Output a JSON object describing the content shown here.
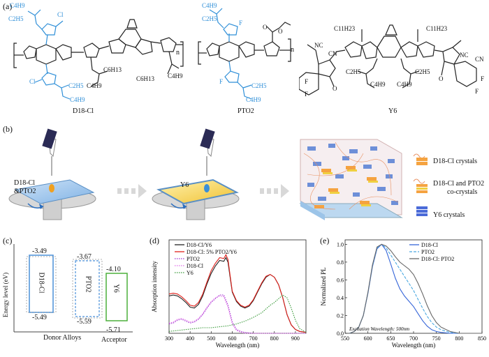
{
  "panel_a": {
    "label": "(a)",
    "molecules": [
      "D18-Cl",
      "PTO2",
      "Y6"
    ],
    "substituents": {
      "d18_cl": [
        "C4H9",
        "C2H5",
        "Cl",
        "C6H13",
        "C4H9",
        "C6H13",
        "C4H9",
        "Cl",
        "C2H5",
        "C4H9"
      ],
      "pto2": [
        "C4H9",
        "C2H5",
        "F",
        "F",
        "C2H5",
        "C4H9"
      ],
      "y6": [
        "C11H23",
        "C11H23",
        "C2H5",
        "C4H9",
        "C2H5",
        "C4H9",
        "NC",
        "CN",
        "NC",
        "CN",
        "F",
        "F",
        "F",
        "F",
        "O",
        "O"
      ]
    }
  },
  "panel_b": {
    "label": "(b)",
    "step1_label": "D18-Cl\n&PTO2",
    "step1_line1": "D18-Cl",
    "step1_line2": "&PTO2",
    "step2_label": "Y6",
    "legend": [
      "D18-Cl crystals",
      "D18-Cl and PTO2 co-crystals",
      "Y6 crystals"
    ],
    "legend_line1": "D18-Cl and PTO2",
    "legend_line2": "co-crystals"
  },
  "panel_c": {
    "label": "(c)",
    "ylabel": "Energy level (eV)",
    "boxes": [
      {
        "name": "D18-Cl",
        "lumo": "-3.49",
        "homo": "-5.49"
      },
      {
        "name": "PTO2",
        "lumo": "-3.67",
        "homo": "-5.59"
      },
      {
        "name": "Y6",
        "lumo": "-4.10",
        "homo": "-5.71"
      }
    ],
    "donor_label": "Donor Alloys",
    "acceptor_label": "Acceptor"
  },
  "chart_data": [
    {
      "type": "line",
      "panel": "(d)",
      "xlabel": "Wavelength (nm)",
      "ylabel": "Absorption intensity",
      "xlim": [
        300,
        950
      ],
      "ylim": [
        0,
        1.0
      ],
      "xticks": [
        300,
        400,
        500,
        600,
        700,
        800,
        900
      ],
      "series": [
        {
          "name": "D18-Cl/Y6",
          "color": "#222222",
          "style": "solid",
          "x": [
            300,
            320,
            340,
            360,
            380,
            400,
            420,
            440,
            460,
            480,
            500,
            520,
            540,
            560,
            570,
            580,
            590,
            600,
            620,
            640,
            660,
            680,
            700,
            720,
            740,
            760,
            780,
            800,
            820,
            840,
            860,
            880,
            900,
            920,
            950
          ],
          "y": [
            0.4,
            0.41,
            0.4,
            0.37,
            0.33,
            0.28,
            0.27,
            0.31,
            0.4,
            0.53,
            0.64,
            0.72,
            0.78,
            0.77,
            0.81,
            0.76,
            0.6,
            0.44,
            0.34,
            0.29,
            0.27,
            0.29,
            0.35,
            0.44,
            0.53,
            0.6,
            0.63,
            0.6,
            0.52,
            0.38,
            0.2,
            0.09,
            0.04,
            0.02,
            0.01
          ]
        },
        {
          "name": "D18-Cl: 5% PTO2/Y6",
          "color": "#e0201a",
          "style": "solid",
          "x": [
            300,
            320,
            340,
            360,
            380,
            400,
            420,
            440,
            460,
            480,
            500,
            520,
            540,
            560,
            570,
            580,
            590,
            600,
            620,
            640,
            660,
            680,
            700,
            720,
            740,
            760,
            780,
            800,
            820,
            840,
            860,
            880,
            900,
            920,
            950
          ],
          "y": [
            0.42,
            0.43,
            0.42,
            0.39,
            0.35,
            0.3,
            0.29,
            0.33,
            0.42,
            0.55,
            0.67,
            0.75,
            0.81,
            0.8,
            0.84,
            0.79,
            0.62,
            0.45,
            0.35,
            0.3,
            0.28,
            0.3,
            0.36,
            0.45,
            0.54,
            0.61,
            0.63,
            0.6,
            0.52,
            0.38,
            0.2,
            0.09,
            0.04,
            0.02,
            0.01
          ]
        },
        {
          "name": "PTO2",
          "color": "#a030d0",
          "style": "dotted",
          "x": [
            300,
            320,
            340,
            360,
            380,
            400,
            420,
            440,
            460,
            480,
            500,
            520,
            540,
            560,
            580,
            600,
            620,
            640,
            660,
            700,
            800,
            950
          ],
          "y": [
            0.1,
            0.11,
            0.14,
            0.15,
            0.13,
            0.11,
            0.12,
            0.15,
            0.2,
            0.27,
            0.33,
            0.37,
            0.41,
            0.41,
            0.3,
            0.12,
            0.04,
            0.02,
            0.01,
            0.0,
            0.0,
            0.0
          ]
        },
        {
          "name": "D18-Cl",
          "color": "#e070e8",
          "style": "dotted",
          "x": [
            300,
            320,
            340,
            360,
            380,
            400,
            420,
            440,
            460,
            480,
            500,
            520,
            540,
            560,
            580,
            600,
            620,
            640,
            660,
            700,
            800,
            950
          ],
          "y": [
            0.11,
            0.12,
            0.15,
            0.16,
            0.14,
            0.12,
            0.13,
            0.16,
            0.21,
            0.28,
            0.34,
            0.38,
            0.4,
            0.39,
            0.28,
            0.1,
            0.03,
            0.01,
            0.0,
            0.0,
            0.0,
            0.0
          ]
        },
        {
          "name": "Y6",
          "color": "#3a9a3a",
          "style": "dotted",
          "x": [
            300,
            340,
            380,
            420,
            460,
            500,
            540,
            580,
            620,
            660,
            700,
            740,
            780,
            800,
            820,
            840,
            860,
            880,
            900,
            920,
            950
          ],
          "y": [
            0.02,
            0.03,
            0.04,
            0.05,
            0.06,
            0.06,
            0.07,
            0.08,
            0.1,
            0.13,
            0.17,
            0.22,
            0.3,
            0.33,
            0.37,
            0.41,
            0.38,
            0.27,
            0.14,
            0.05,
            0.01
          ]
        }
      ]
    },
    {
      "type": "line",
      "panel": "(e)",
      "xlabel": "Wavelength (nm)",
      "ylabel": "Normalized PL",
      "xlim": [
        550,
        850
      ],
      "ylim": [
        0,
        1.05
      ],
      "xticks": [
        550,
        600,
        650,
        700,
        750,
        800,
        850
      ],
      "yticks": [
        0.0,
        0.2,
        0.4,
        0.6,
        0.8,
        1.0
      ],
      "annotation": "Excitation Wavelength: 500nm",
      "series": [
        {
          "name": "D18-Cl",
          "color": "#3565d8",
          "style": "solid",
          "x": [
            560,
            570,
            580,
            590,
            600,
            610,
            620,
            630,
            640,
            650,
            660,
            670,
            680,
            690,
            700,
            710,
            720,
            730,
            740,
            750,
            760,
            780,
            800,
            850
          ],
          "y": [
            0.0,
            0.02,
            0.07,
            0.2,
            0.45,
            0.75,
            0.95,
            1.0,
            0.93,
            0.78,
            0.62,
            0.5,
            0.42,
            0.36,
            0.3,
            0.22,
            0.14,
            0.08,
            0.04,
            0.02,
            0.01,
            0.0,
            0.0,
            0.0
          ]
        },
        {
          "name": "PTO2",
          "color": "#4aa8e0",
          "style": "dashed",
          "x": [
            560,
            570,
            580,
            590,
            600,
            610,
            620,
            630,
            640,
            650,
            660,
            670,
            680,
            690,
            700,
            710,
            720,
            730,
            740,
            750,
            760,
            780,
            800,
            850
          ],
          "y": [
            0.0,
            0.02,
            0.07,
            0.2,
            0.46,
            0.76,
            0.96,
            1.0,
            0.96,
            0.88,
            0.8,
            0.72,
            0.64,
            0.56,
            0.48,
            0.38,
            0.28,
            0.19,
            0.12,
            0.07,
            0.04,
            0.01,
            0.0,
            0.0
          ]
        },
        {
          "name": "D18-Cl: PTO2",
          "color": "#666666",
          "style": "solid",
          "x": [
            560,
            570,
            580,
            590,
            600,
            610,
            620,
            630,
            640,
            650,
            660,
            670,
            680,
            690,
            700,
            710,
            720,
            730,
            740,
            750,
            760,
            780,
            800,
            850
          ],
          "y": [
            0.0,
            0.02,
            0.07,
            0.2,
            0.46,
            0.77,
            0.97,
            1.0,
            0.98,
            0.93,
            0.86,
            0.8,
            0.76,
            0.72,
            0.66,
            0.56,
            0.44,
            0.31,
            0.2,
            0.12,
            0.07,
            0.02,
            0.0,
            0.0
          ]
        }
      ]
    }
  ]
}
